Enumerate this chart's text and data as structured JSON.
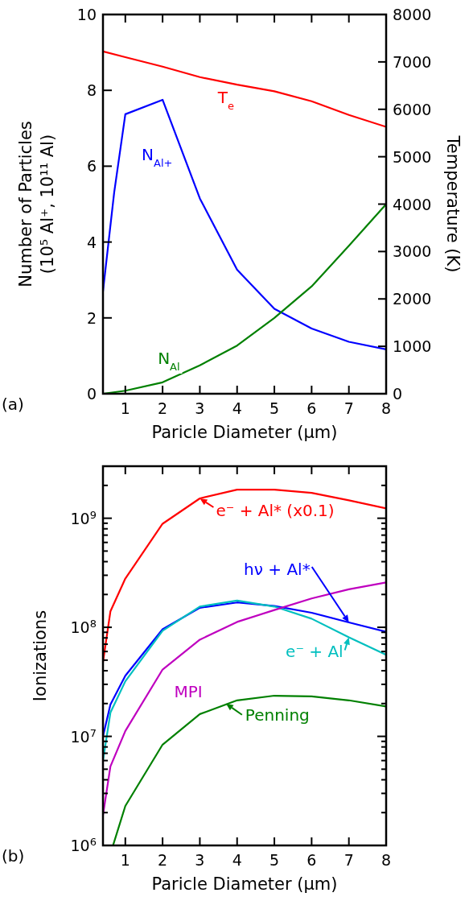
{
  "chart_data": [
    {
      "type": "line",
      "xlabel": "Paricle Diameter (µm)",
      "ylabel": "Number of Particles\n(10⁵ Al⁺, 10¹¹ Al)",
      "y2label": "Temperature (K)",
      "xlim": [
        0.4,
        8
      ],
      "xticks": [
        1,
        2,
        3,
        4,
        5,
        6,
        7,
        8
      ],
      "ylim": [
        0,
        10
      ],
      "yticks": [
        0,
        2,
        4,
        6,
        8,
        10
      ],
      "y2lim": [
        0,
        8000
      ],
      "y2ticks": [
        0,
        1000,
        2000,
        3000,
        4000,
        5000,
        6000,
        7000,
        8000
      ],
      "legend": false,
      "grid": false,
      "annotations": [
        "(a)"
      ],
      "series": [
        {
          "name": "T$_{e}$",
          "color": "#ff0000",
          "axis": "y2",
          "x": [
            0.4,
            1,
            2,
            3,
            4,
            5,
            6,
            7,
            8
          ],
          "values": [
            7220,
            7100,
            6900,
            6680,
            6520,
            6380,
            6170,
            5880,
            5630
          ]
        },
        {
          "name": "N$_{Al+}$",
          "color": "#0000ff",
          "x": [
            0.4,
            0.7,
            1,
            2,
            3,
            4,
            5,
            6,
            7,
            8
          ],
          "values": [
            2.7,
            5.3,
            7.37,
            7.75,
            5.15,
            3.27,
            2.24,
            1.72,
            1.37,
            1.17
          ]
        },
        {
          "name": "N$_{Al}$",
          "color": "#008000",
          "x": [
            0.4,
            1,
            2,
            3,
            4,
            5,
            6,
            7,
            8
          ],
          "values": [
            0,
            0.08,
            0.3,
            0.75,
            1.27,
            2.0,
            2.83,
            3.9,
            5.0
          ]
        }
      ]
    },
    {
      "type": "line",
      "xlabel": "Paricle Diameter (µm)",
      "ylabel": "Ionizations",
      "xlim": [
        0.4,
        8
      ],
      "xticks": [
        1,
        2,
        3,
        4,
        5,
        6,
        7,
        8
      ],
      "log": true,
      "ylim": [
        1000000,
        3000000000
      ],
      "yticks": [
        {
          "value": 1000000,
          "label": "10$^{6}$"
        },
        {
          "value": 2000000,
          "label": null
        },
        {
          "value": 3000000,
          "label": null
        },
        {
          "value": 4000000,
          "label": null
        },
        {
          "value": 5000000,
          "label": null
        },
        {
          "value": 6000000,
          "label": null
        },
        {
          "value": 7000000,
          "label": null
        },
        {
          "value": 8000000,
          "label": null
        },
        {
          "value": 9000000,
          "label": null
        },
        {
          "value": 10000000,
          "label": "10$^{7}$"
        },
        {
          "value": 20000000,
          "label": null
        },
        {
          "value": 30000000,
          "label": null
        },
        {
          "value": 40000000,
          "label": null
        },
        {
          "value": 50000000,
          "label": null
        },
        {
          "value": 60000000,
          "label": null
        },
        {
          "value": 70000000,
          "label": null
        },
        {
          "value": 80000000,
          "label": null
        },
        {
          "value": 90000000,
          "label": null
        },
        {
          "value": 100000000,
          "label": "10$^{8}$"
        },
        {
          "value": 200000000,
          "label": null
        },
        {
          "value": 300000000,
          "label": null
        },
        {
          "value": 400000000,
          "label": null
        },
        {
          "value": 500000000,
          "label": null
        },
        {
          "value": 600000000,
          "label": null
        },
        {
          "value": 700000000,
          "label": null
        },
        {
          "value": 800000000,
          "label": null
        },
        {
          "value": 900000000,
          "label": null
        },
        {
          "value": 1000000000,
          "label": "10$^{9}$"
        },
        {
          "value": 2000000000,
          "label": null
        },
        {
          "value": 3000000000,
          "label": null
        }
      ],
      "legend": false,
      "grid": false,
      "annotations": [
        "(b)",
        {
          "text": "e⁻ + Al* (x0.1)",
          "x": 3,
          "y": 1520000000
        },
        {
          "text": "hν + Al*",
          "x": 7,
          "y": 111000000
        },
        {
          "text": "e⁻ + Al",
          "x": 7,
          "y": 81000000
        },
        {
          "text": "Penning",
          "x": 3.7,
          "y": 20000000
        }
      ],
      "series": [
        {
          "color": "#ff0000",
          "x": [
            0.4,
            0.6,
            1,
            2,
            3,
            4,
            5,
            6,
            7,
            8
          ],
          "values": [
            48000000,
            140000000,
            280000000,
            890000000,
            1520000000,
            1830000000,
            1830000000,
            1710000000,
            1460000000,
            1230000000
          ]
        },
        {
          "color": "#0000ff",
          "x": [
            0.4,
            0.6,
            1,
            2,
            3,
            4,
            5,
            6,
            7,
            8
          ],
          "values": [
            10000000,
            19600000,
            36000000,
            96000000,
            151000000,
            169000000,
            157000000,
            136000000,
            111000000,
            91000000
          ]
        },
        {
          "color": "#00bfbf",
          "x": [
            0.4,
            0.6,
            1,
            2,
            3,
            4,
            5,
            6,
            7,
            8
          ],
          "values": [
            6000000,
            16500000,
            32000000,
            93000000,
            155000000,
            176000000,
            155000000,
            120000000,
            81000000,
            56000000
          ]
        },
        {
          "name": "MPI",
          "color": "#bf00bf",
          "x": [
            0.4,
            0.6,
            1,
            2,
            3,
            4,
            5,
            6,
            7,
            8
          ],
          "values": [
            1900000,
            5300000,
            11200000,
            41000000,
            77000000,
            112000000,
            144000000,
            184000000,
            223000000,
            258000000
          ]
        },
        {
          "color": "#008000",
          "x": [
            0.67,
            1,
            2,
            3,
            4,
            5,
            6,
            7,
            8
          ],
          "values": [
            1000000,
            2300000,
            8400000,
            16000000,
            21400000,
            23600000,
            23300000,
            21400000,
            18800000
          ]
        }
      ]
    }
  ]
}
